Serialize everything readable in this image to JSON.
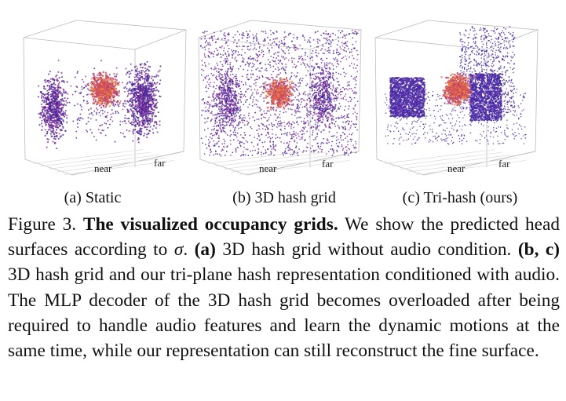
{
  "figure": {
    "panels": [
      {
        "near": "near",
        "far": "far",
        "subcaption": "(a)  Static"
      },
      {
        "near": "near",
        "far": "far",
        "subcaption": "(b)  3D hash grid"
      },
      {
        "near": "near",
        "far": "far",
        "subcaption": "(c)  Tri-hash (ours)"
      }
    ],
    "caption": [
      {
        "text": "Figure 3. ",
        "style": "normal"
      },
      {
        "text": "The visualized occupancy grids.",
        "style": "bold"
      },
      {
        "text": " We show the predicted head surfaces according to ",
        "style": "normal"
      },
      {
        "text": "σ",
        "style": "italic"
      },
      {
        "text": ". ",
        "style": "normal"
      },
      {
        "text": "(a)",
        "style": "bold"
      },
      {
        "text": " 3D hash grid without audio condition. ",
        "style": "normal"
      },
      {
        "text": "(b, c)",
        "style": "bold"
      },
      {
        "text": " 3D hash grid and our tri-plane hash representation conditioned with audio.  The MLP decoder of the 3D hash grid becomes overloaded after being required to handle audio features and learn the dynamic motions at the same time, while our representation can still reconstruct the fine surface.",
        "style": "normal"
      }
    ]
  }
}
